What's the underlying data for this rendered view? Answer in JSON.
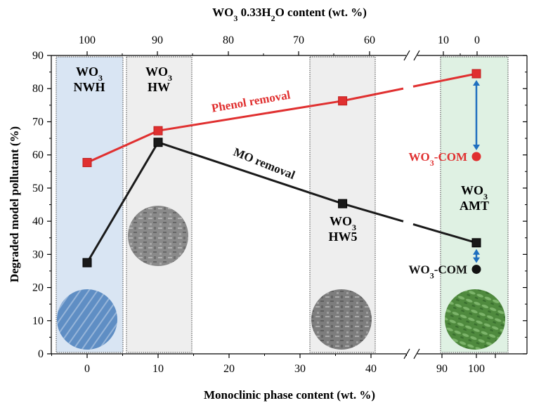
{
  "chart_data": {
    "type": "line",
    "top_axis_label_parts": [
      "WO",
      "3",
      " 0.33H",
      "2",
      "O content (wt. %)"
    ],
    "top_axis_ticks": [
      "100",
      "90",
      "80",
      "70",
      "60",
      "10",
      "0"
    ],
    "xlabel": "Monoclinic phase content (wt. %)",
    "ylabel": "Degraded model pollutant (%)",
    "ylim": [
      0,
      90
    ],
    "yticks": [
      "0",
      "10",
      "20",
      "30",
      "40",
      "50",
      "60",
      "70",
      "80",
      "90"
    ],
    "bottom_ticks": [
      "0",
      "10",
      "20",
      "30",
      "40",
      "90",
      "100"
    ],
    "axis_break": true,
    "series": [
      {
        "name": "Phenol removal",
        "color": "#e03030",
        "points": [
          {
            "x": 0,
            "y": 57.7
          },
          {
            "x": 10,
            "y": 67.3
          },
          {
            "x": 36,
            "y": 76.3
          },
          {
            "x": 100,
            "y": 84.5
          }
        ]
      },
      {
        "name": "MO removal",
        "color": "#1a1a1a",
        "points": [
          {
            "x": 0,
            "y": 27.5
          },
          {
            "x": 10,
            "y": 63.8
          },
          {
            "x": 36,
            "y": 45.3
          },
          {
            "x": 100,
            "y": 33.5
          }
        ]
      }
    ],
    "references": [
      {
        "label_parts": [
          "WO",
          "3",
          "-COM"
        ],
        "y": 59.5,
        "color": "#e03030"
      },
      {
        "label_parts": [
          "WO",
          "3",
          "-COM"
        ],
        "y": 25.5,
        "color": "#111111"
      }
    ],
    "sample_regions": [
      {
        "label": [
          "WO",
          "3",
          "NWH"
        ],
        "fill": "#d9e5f3",
        "image": "sem-micrograph-nwh",
        "image_tint": "#5f8ec4"
      },
      {
        "label": [
          "WO",
          "3",
          "HW"
        ],
        "fill": "#eeeeee",
        "image": "sem-micrograph-hw",
        "image_tint": "#8a8a8a"
      },
      {
        "label": [
          "WO",
          "3",
          "HW5"
        ],
        "fill": "#eeeeee",
        "image": "sem-micrograph-hw5",
        "image_tint": "#7d7d7d"
      },
      {
        "label": [
          "WO",
          "3",
          "AMT"
        ],
        "fill": "#dff1e3",
        "image": "sem-micrograph-amt",
        "image_tint": "#4f8a3e"
      }
    ]
  }
}
